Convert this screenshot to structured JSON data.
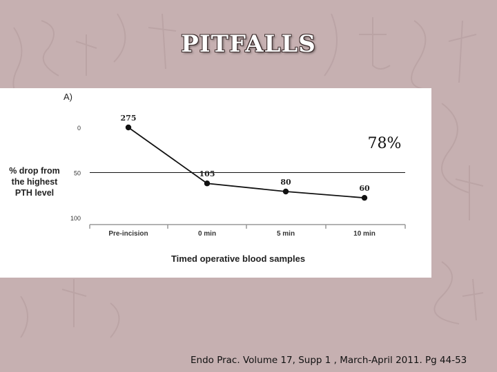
{
  "slide": {
    "title": "PITFALLS",
    "citation": "Endo Prac. Volume 17, Supp 1 , March-April 2011. Pg 44-53"
  },
  "colors": {
    "background": "#c6b0b1",
    "title": "#ffffff",
    "panel": "#ffffff",
    "line": "#111111"
  },
  "chart_data": {
    "type": "line",
    "panel_label": "A)",
    "categories": [
      "Pre-incision",
      "0 min",
      "5 min",
      "10 min"
    ],
    "values": [
      0,
      62,
      71,
      78
    ],
    "point_labels": [
      "275",
      "105",
      "80",
      "60"
    ],
    "ylim": [
      0,
      100
    ],
    "y_inverted": true,
    "y_ticks": [
      "0",
      "50",
      "100"
    ],
    "ylabel": "% drop from the highest PTH level",
    "ylabel_lines": [
      "% drop from",
      "the highest",
      "PTH level"
    ],
    "xlabel": "Timed operative blood samples",
    "reference_line": 50,
    "annotation": "78%",
    "grid": false
  }
}
